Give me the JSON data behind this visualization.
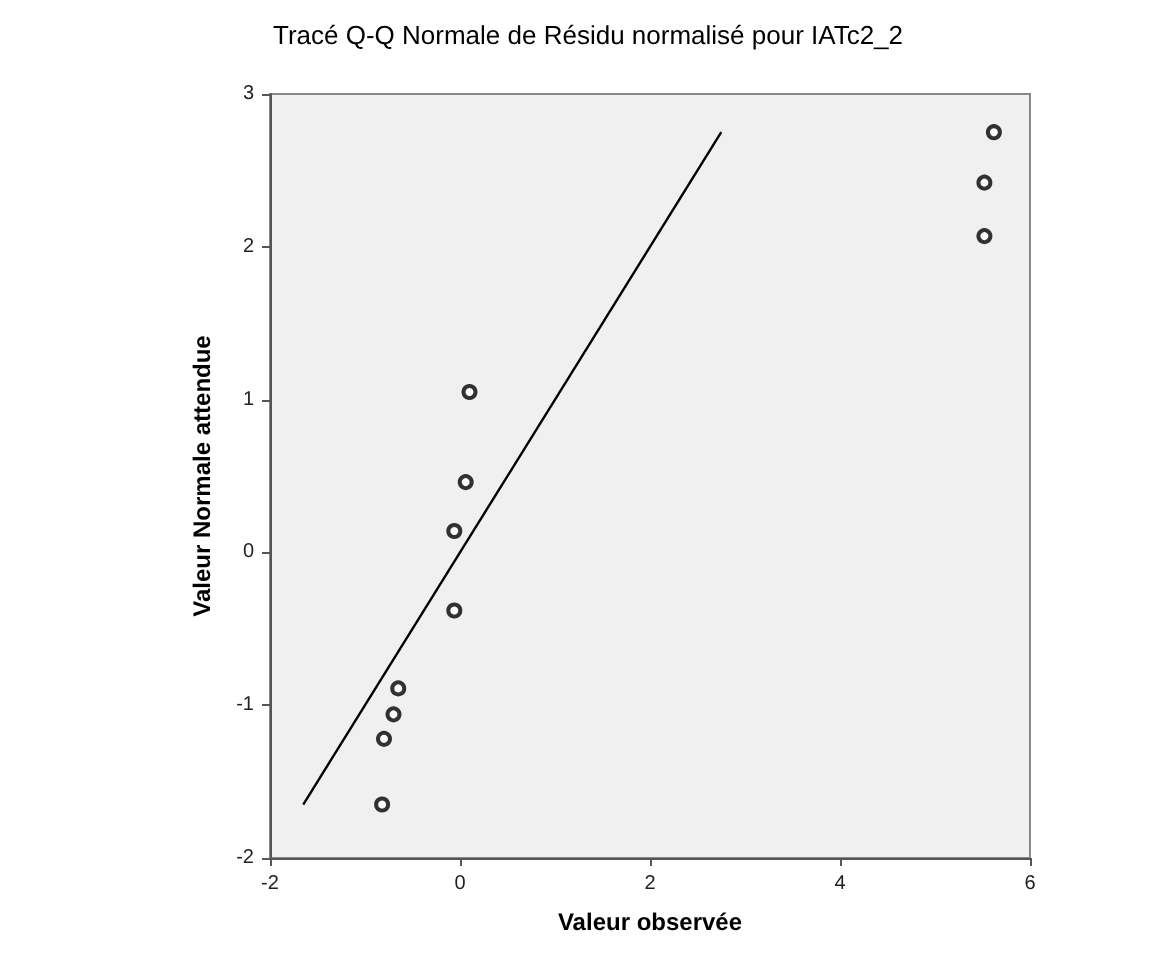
{
  "chart_data": {
    "type": "scatter",
    "title": "Tracé Q-Q Normale de Résidu normalisé pour IATc2_2",
    "xlabel": "Valeur observée",
    "ylabel": "Valeur Normale attendue",
    "x": [
      -0.82,
      -0.8,
      -0.7,
      -0.65,
      -0.06,
      -0.06,
      0.06,
      0.1,
      5.52,
      5.52,
      5.62
    ],
    "series": [
      {
        "color": "#000000",
        "marker": "circle",
        "values": [
          -1.65,
          -1.22,
          -1.06,
          -0.89,
          -0.38,
          0.14,
          0.46,
          1.05,
          2.07,
          2.42,
          2.75
        ]
      },
      {
        "type": "line",
        "color": "#000000",
        "marker": "none",
        "x": [
          -1.65,
          2.75
        ],
        "values": [
          -1.65,
          2.75
        ]
      }
    ],
    "xlim": [
      -2,
      6
    ],
    "xticks": [
      -2,
      0,
      2,
      4,
      6
    ],
    "ylim": [
      -2,
      3
    ],
    "yticks": [
      -2,
      -1,
      0,
      1,
      2,
      3
    ]
  }
}
